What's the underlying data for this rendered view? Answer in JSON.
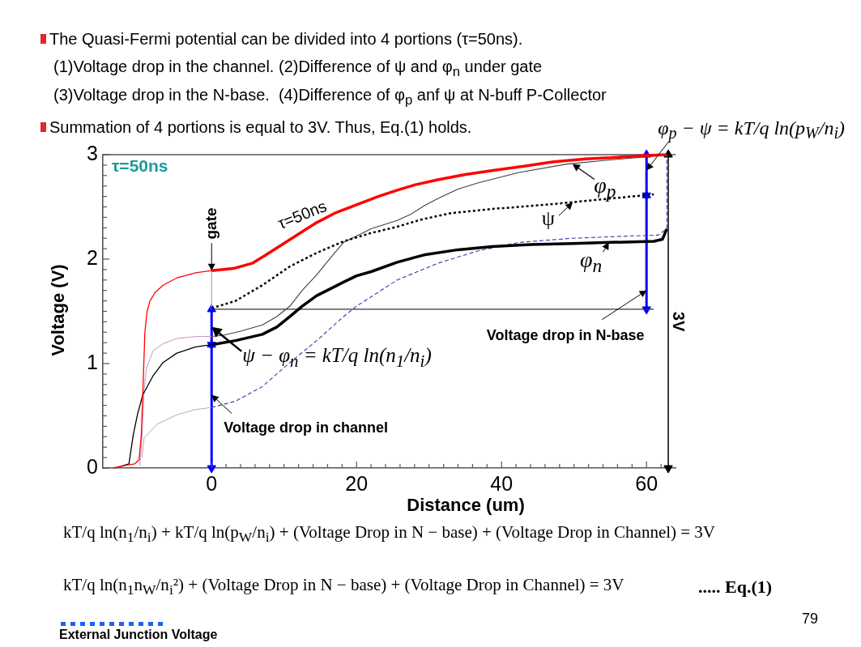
{
  "chart_data": {
    "type": "line",
    "title": "The Quasi-Fermi potential can be divided into 4 portions (τ=50ns).",
    "xlabel": "Distance (um)",
    "ylabel": "Voltage (V)",
    "xlim": [
      -15,
      64
    ],
    "ylim": [
      0,
      3
    ],
    "xticks": [
      0,
      {
        "value": 2,
        "label": null
      },
      {
        "value": 4,
        "label": null
      },
      {
        "value": 6,
        "label": null
      },
      {
        "value": 8,
        "label": null
      },
      {
        "value": 10,
        "label": null
      },
      {
        "value": 12,
        "label": null
      },
      {
        "value": 14,
        "label": null
      },
      {
        "value": 16,
        "label": null
      },
      {
        "value": 18,
        "label": null
      },
      20,
      {
        "value": 22,
        "label": null
      },
      {
        "value": 24,
        "label": null
      },
      {
        "value": 26,
        "label": null
      },
      {
        "value": 28,
        "label": null
      },
      {
        "value": 30,
        "label": null
      },
      {
        "value": 32,
        "label": null
      },
      {
        "value": 34,
        "label": null
      },
      {
        "value": 36,
        "label": null
      },
      {
        "value": 38,
        "label": null
      },
      40,
      {
        "value": 42,
        "label": null
      },
      {
        "value": 44,
        "label": null
      },
      {
        "value": 46,
        "label": null
      },
      {
        "value": 48,
        "label": null
      },
      {
        "value": 50,
        "label": null
      },
      {
        "value": 52,
        "label": null
      },
      {
        "value": 54,
        "label": null
      },
      {
        "value": 56,
        "label": null
      },
      {
        "value": 58,
        "label": null
      },
      60,
      {
        "value": 62,
        "label": null
      }
    ],
    "yticks": [
      0,
      {
        "value": 0.1,
        "label": null
      },
      {
        "value": 0.2,
        "label": null
      },
      {
        "value": 0.3,
        "label": null
      },
      {
        "value": 0.4,
        "label": null
      },
      {
        "value": 0.5,
        "label": null
      },
      {
        "value": 0.6,
        "label": null
      },
      {
        "value": 0.7,
        "label": null
      },
      {
        "value": 0.8,
        "label": null
      },
      {
        "value": 0.9,
        "label": null
      },
      1,
      {
        "value": 1.1,
        "label": null
      },
      {
        "value": 1.2,
        "label": null
      },
      {
        "value": 1.3,
        "label": null
      },
      {
        "value": 1.4,
        "label": null
      },
      {
        "value": 1.5,
        "label": null
      },
      {
        "value": 1.6,
        "label": null
      },
      {
        "value": 1.7,
        "label": null
      },
      {
        "value": 1.8,
        "label": null
      },
      {
        "value": 1.9,
        "label": null
      },
      2,
      {
        "value": 2.1,
        "label": null
      },
      {
        "value": 2.2,
        "label": null
      },
      {
        "value": 2.3,
        "label": null
      },
      {
        "value": 2.4,
        "label": null
      },
      {
        "value": 2.5,
        "label": null
      },
      {
        "value": 2.6,
        "label": null
      },
      {
        "value": 2.7,
        "label": null
      },
      {
        "value": 2.8,
        "label": null
      },
      {
        "value": 2.9,
        "label": null
      },
      3
    ],
    "series": [
      {
        "color": "#ff0000",
        "x": [
          -13.6,
          -11.5,
          -10.6,
          -10,
          -9.7,
          -9.6,
          -9.2,
          -8.9,
          -8.5,
          -7.8,
          -6.7,
          -4.8,
          -2.2,
          0
        ],
        "values": [
          0,
          0.03,
          0.04,
          0.08,
          0.31,
          0.5,
          1.3,
          1.5,
          1.6,
          1.68,
          1.75,
          1.82,
          1.87,
          1.89
        ]
      },
      {
        "color": "#ff0000",
        "x": [
          0,
          3,
          5.6,
          7.5,
          9.3,
          12,
          14.5,
          17,
          20,
          23,
          25.6,
          28,
          31.2,
          35,
          39,
          43.1,
          47,
          51.6,
          55,
          59.4,
          62.8
        ],
        "values": [
          1.89,
          1.91,
          1.96,
          2.04,
          2.12,
          2.24,
          2.35,
          2.44,
          2.52,
          2.6,
          2.66,
          2.71,
          2.76,
          2.81,
          2.85,
          2.89,
          2.93,
          2.96,
          2.97,
          2.99,
          3.0
        ]
      },
      {
        "color": "#000000",
        "x": [
          -13.4,
          -11.4,
          -10.8,
          -10.2,
          -9.5,
          -8.1,
          -6.7,
          -4.8,
          -2.2,
          0
        ],
        "values": [
          0,
          0.04,
          0.32,
          0.52,
          0.7,
          0.88,
          1.01,
          1.1,
          1.16,
          1.18
        ]
      },
      {
        "color": "#000000",
        "x": [
          0,
          3.3,
          7,
          9,
          10.8,
          12.5,
          14.5,
          16.5,
          18.2,
          20,
          22,
          25.6,
          29.3,
          34,
          38.7,
          44,
          49.8,
          55,
          61,
          62.2,
          62.8
        ],
        "values": [
          1.18,
          1.22,
          1.28,
          1.35,
          1.45,
          1.55,
          1.65,
          1.72,
          1.78,
          1.84,
          1.88,
          1.97,
          2.04,
          2.09,
          2.12,
          2.14,
          2.15,
          2.16,
          2.17,
          2.19,
          2.29
        ]
      },
      {
        "color": "#000000",
        "line_style": "dotted",
        "x": [
          0,
          3.3,
          7,
          10.8,
          14.5,
          18.2,
          22,
          25.6,
          29,
          33,
          38.7,
          46,
          53.5,
          61
        ],
        "values": [
          1.53,
          1.6,
          1.75,
          1.93,
          2.06,
          2.17,
          2.25,
          2.31,
          2.38,
          2.44,
          2.48,
          2.52,
          2.57,
          2.62
        ]
      },
      {
        "color": "#c890c8",
        "x": [
          -9.9,
          -9.6,
          -9.3,
          -9,
          -8.1,
          -6.7,
          -4.8,
          -2,
          0
        ],
        "values": [
          0.02,
          0.3,
          0.75,
          0.95,
          1.12,
          1.19,
          1.24,
          1.26,
          1.26
        ]
      },
      {
        "color": "#404040",
        "x": [
          0,
          1.5,
          4,
          7,
          9,
          10.8,
          12.5,
          14.5,
          16.5,
          18.2,
          20,
          22,
          25.6,
          27.5,
          29.3,
          31.2,
          34,
          36.8,
          42.4,
          49,
          55,
          60,
          62.8
        ],
        "values": [
          1.26,
          1.27,
          1.31,
          1.37,
          1.45,
          1.55,
          1.7,
          1.85,
          2.02,
          2.16,
          2.22,
          2.29,
          2.37,
          2.43,
          2.51,
          2.58,
          2.67,
          2.73,
          2.83,
          2.91,
          2.95,
          2.98,
          3.0
        ]
      },
      {
        "color": "#b8a8b8",
        "x": [
          -9.6,
          -9.3,
          -7.5,
          -4.8,
          -2.2,
          0
        ],
        "values": [
          0.1,
          0.29,
          0.42,
          0.51,
          0.56,
          0.58
        ]
      },
      {
        "color": "#3838b0",
        "line_style": "dashed",
        "x": [
          0,
          3.3,
          7,
          10.8,
          14.5,
          18.2,
          20,
          25.6,
          31.2,
          36.8,
          42.4,
          49.8,
          57.2,
          61.6,
          62.4,
          62.8,
          62.8
        ],
        "values": [
          0.58,
          0.64,
          0.78,
          1.01,
          1.22,
          1.45,
          1.55,
          1.8,
          1.96,
          2.08,
          2.16,
          2.2,
          2.22,
          2.23,
          2.27,
          2.3,
          3.0
        ]
      },
      {
        "color": "#a8a0d8",
        "x": [
          0,
          0
        ],
        "values": [
          1.52,
          1.89
        ]
      },
      {
        "color": "#333333",
        "x": [
          0,
          61
        ],
        "values": [
          1.52,
          1.52
        ]
      },
      {
        "color": "#0000ff",
        "marker": "triangle",
        "x": [
          0,
          0
        ],
        "values": [
          0,
          1.18
        ]
      },
      {
        "color": "#0000ff",
        "marker": "triangle",
        "x": [
          0,
          0
        ],
        "values": [
          1.18,
          1.52
        ]
      },
      {
        "color": "#0000ff",
        "marker": "triangle",
        "x": [
          60,
          60
        ],
        "values": [
          1.52,
          2.61
        ]
      },
      {
        "color": "#0000ff",
        "marker": "triangle",
        "x": [
          60,
          60
        ],
        "values": [
          2.61,
          3.0
        ]
      },
      {
        "color": "#000000",
        "marker": "triangle",
        "x": [
          63,
          63
        ],
        "values": [
          0,
          3
        ]
      }
    ],
    "ref_lines": [
      {
        "axis": "y",
        "value": 3,
        "color": "#555555"
      }
    ],
    "annotations": [
      "(1)Voltage drop in the channel. (2)Difference of ψ and φ$_{n}$ under gate",
      "(3)Voltage drop in the N-base.  (4)Difference of φ$_{p}$ anf ψ at N-buff P-Collector",
      "Summation of 4 portions is equal to 3V. Thus, Eq.(1) holds.",
      {
        "text": "φ$_{p}$ − ψ = kT/q ln(p$_{W}$/n$_{i}$)",
        "x": 60,
        "y": 2.85
      },
      "τ=50ns",
      {
        "text": "τ=50ns",
        "x": 12,
        "y": 2.24
      },
      {
        "text": "gate",
        "x": 0,
        "y": 1.89
      },
      {
        "text": "φ$_{p}$",
        "x": 49.8,
        "y": 2.91
      },
      {
        "text": "ψ",
        "x": 49.8,
        "y": 2.54
      },
      {
        "text": "φ$_{n}$",
        "x": 54.8,
        "y": 2.16
      },
      {
        "text": "Voltage drop in N-base",
        "x": 60,
        "y": 1.7
      },
      {
        "text": "ψ − φ$_{n}$ = kT/q ln(n$_{1}$/n$_{i}$)",
        "x": 0,
        "y": 1.35
      },
      {
        "text": "Voltage drop in channel",
        "x": 0,
        "y": 0.7
      },
      {
        "text": "3V",
        "x": 63,
        "y": 1.5
      },
      "kT/q ln(n$_{1}$/n$_{i}$) + kT/q ln(p$_{W}$/n$_{i}$) + (Voltage Drop in N − base) + (Voltage Drop in Channel) = 3V",
      "kT/q ln(n$_{1}$n$_{W}$/n$_{i}$²) + (Voltage Drop in N − base) + (Voltage Drop in Channel) = 3V",
      "..... Eq.(1)",
      "External Junction Voltage",
      "79"
    ]
  }
}
